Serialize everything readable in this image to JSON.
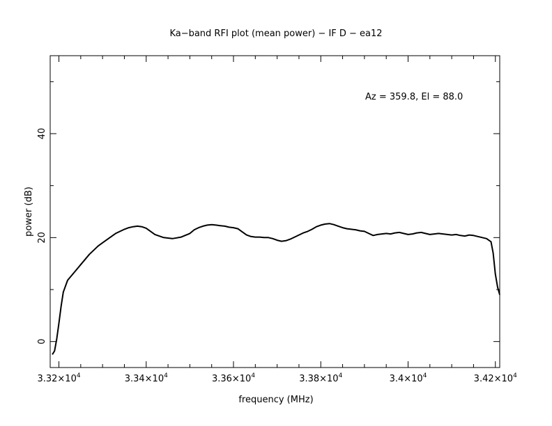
{
  "chart_data": {
    "type": "line",
    "title": "Ka−band RFI plot (mean power) − IF D − ea12",
    "xlabel": "frequency (MHz)",
    "ylabel": "power (dB)",
    "annotation": "Az = 359.8, El = 88.0",
    "xlim": [
      33180,
      34210
    ],
    "ylim": [
      -5,
      55
    ],
    "grid": false,
    "x_ticks": [
      {
        "value": 33200,
        "mant": "3.32",
        "exp": "4"
      },
      {
        "value": 33400,
        "mant": "3.34",
        "exp": "4"
      },
      {
        "value": 33600,
        "mant": "3.36",
        "exp": "4"
      },
      {
        "value": 33800,
        "mant": "3.38",
        "exp": "4"
      },
      {
        "value": 34000,
        "mant": "3.4",
        "exp": "4"
      },
      {
        "value": 34200,
        "mant": "3.42",
        "exp": "4"
      }
    ],
    "y_ticks": [
      0,
      20,
      40
    ],
    "series": [
      {
        "color": "#000000",
        "x": [
          33185,
          33190,
          33195,
          33200,
          33205,
          33210,
          33220,
          33230,
          33240,
          33250,
          33260,
          33270,
          33280,
          33290,
          33300,
          33310,
          33320,
          33330,
          33340,
          33350,
          33360,
          33370,
          33380,
          33390,
          33400,
          33420,
          33440,
          33460,
          33480,
          33500,
          33510,
          33520,
          33530,
          33540,
          33550,
          33560,
          33570,
          33580,
          33590,
          33600,
          33610,
          33620,
          33630,
          33640,
          33650,
          33660,
          33670,
          33680,
          33690,
          33700,
          33710,
          33720,
          33730,
          33740,
          33750,
          33760,
          33770,
          33780,
          33790,
          33800,
          33810,
          33820,
          33830,
          33840,
          33850,
          33860,
          33870,
          33880,
          33890,
          33900,
          33910,
          33920,
          33930,
          33940,
          33950,
          33960,
          33970,
          33980,
          33990,
          34000,
          34010,
          34020,
          34030,
          34040,
          34050,
          34060,
          34070,
          34080,
          34090,
          34100,
          34110,
          34120,
          34130,
          34140,
          34150,
          34160,
          34170,
          34180,
          34185,
          34190,
          34195,
          34200,
          34205,
          34210
        ],
        "y": [
          -2.5,
          -1.8,
          0.5,
          3.5,
          6.8,
          9.5,
          11.8,
          12.8,
          13.8,
          14.8,
          15.8,
          16.8,
          17.6,
          18.4,
          19.0,
          19.6,
          20.2,
          20.8,
          21.2,
          21.6,
          21.9,
          22.1,
          22.2,
          22.1,
          21.8,
          20.6,
          20.0,
          19.8,
          20.1,
          20.8,
          21.5,
          21.9,
          22.2,
          22.4,
          22.5,
          22.4,
          22.3,
          22.2,
          22.0,
          21.9,
          21.7,
          21.1,
          20.5,
          20.2,
          20.1,
          20.1,
          20.0,
          20.0,
          19.8,
          19.5,
          19.3,
          19.4,
          19.7,
          20.1,
          20.5,
          20.9,
          21.2,
          21.6,
          22.1,
          22.4,
          22.6,
          22.7,
          22.5,
          22.2,
          21.9,
          21.7,
          21.6,
          21.5,
          21.3,
          21.2,
          20.8,
          20.4,
          20.6,
          20.7,
          20.8,
          20.7,
          20.9,
          21.0,
          20.8,
          20.6,
          20.7,
          20.9,
          21.0,
          20.8,
          20.6,
          20.7,
          20.8,
          20.7,
          20.6,
          20.5,
          20.6,
          20.4,
          20.3,
          20.5,
          20.4,
          20.2,
          20.0,
          19.8,
          19.5,
          19.2,
          17.0,
          13.0,
          10.5,
          9.0
        ]
      }
    ]
  }
}
